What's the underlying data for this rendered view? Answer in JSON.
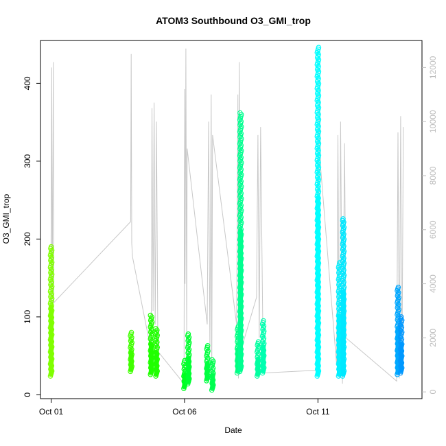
{
  "chart_data": {
    "type": "scatter",
    "title": "ATOM3 Southbound O3_GMI_trop",
    "xlabel": "Date",
    "ylabel": "O3_GMI_trop",
    "x_ticks": [
      "Oct 01",
      "Oct 06",
      "Oct 11"
    ],
    "x_tick_days": [
      1,
      6,
      11
    ],
    "xlim": [
      0.6,
      14.9
    ],
    "ylim": [
      -5,
      455
    ],
    "y_ticks": [
      0,
      100,
      200,
      300,
      400
    ],
    "y2_ticks": [
      0,
      2000,
      4000,
      6000,
      8000,
      10000,
      12000
    ],
    "y2lim": [
      -250,
      13000
    ],
    "y2_color": "#bdbdbd",
    "series": [
      {
        "day": 1.0,
        "min": 24,
        "max": 190,
        "color": "#80ff00"
      },
      {
        "day": 4.0,
        "min": 30,
        "max": 80,
        "color": "#40ff00"
      },
      {
        "day": 4.75,
        "min": 26,
        "max": 102,
        "color": "#20ff00"
      },
      {
        "day": 4.95,
        "min": 24,
        "max": 85,
        "color": "#20ff00"
      },
      {
        "day": 6.0,
        "min": 8,
        "max": 44,
        "color": "#00ff20"
      },
      {
        "day": 6.15,
        "min": 14,
        "max": 78,
        "color": "#00ff30"
      },
      {
        "day": 6.85,
        "min": 18,
        "max": 63,
        "color": "#00ff40"
      },
      {
        "day": 7.05,
        "min": 6,
        "max": 45,
        "color": "#00ff50"
      },
      {
        "day": 8.0,
        "min": 28,
        "max": 88,
        "color": "#00ff80"
      },
      {
        "day": 8.1,
        "min": 30,
        "max": 362,
        "color": "#00ff90"
      },
      {
        "day": 8.75,
        "min": 24,
        "max": 68,
        "color": "#00ffa0"
      },
      {
        "day": 8.95,
        "min": 28,
        "max": 95,
        "color": "#00ffb0"
      },
      {
        "day": 11.0,
        "min": 24,
        "max": 446,
        "color": "#00ffff"
      },
      {
        "day": 11.8,
        "min": 24,
        "max": 170,
        "color": "#00f0ff"
      },
      {
        "day": 11.95,
        "min": 24,
        "max": 226,
        "color": "#00e8ff"
      },
      {
        "day": 14.0,
        "min": 26,
        "max": 138,
        "color": "#00a8ff"
      },
      {
        "day": 14.12,
        "min": 28,
        "max": 100,
        "color": "#0098ff"
      }
    ],
    "altitude_track": [
      [
        0.98,
        1000
      ],
      [
        1.02,
        12000
      ],
      [
        1.04,
        3200
      ],
      [
        1.08,
        12200
      ],
      [
        1.1,
        3300
      ],
      [
        3.98,
        6300
      ],
      [
        4.0,
        12500
      ],
      [
        4.02,
        5500
      ],
      [
        4.05,
        5000
      ],
      [
        4.75,
        1500
      ],
      [
        4.78,
        10500
      ],
      [
        4.82,
        3000
      ],
      [
        4.86,
        10700
      ],
      [
        4.9,
        2500
      ],
      [
        4.95,
        10000
      ],
      [
        5.0,
        1500
      ],
      [
        5.98,
        300
      ],
      [
        6.0,
        11200
      ],
      [
        6.02,
        4000
      ],
      [
        6.05,
        12700
      ],
      [
        6.08,
        2000
      ],
      [
        6.1,
        9000
      ],
      [
        6.85,
        2500
      ],
      [
        6.9,
        10000
      ],
      [
        6.95,
        1500
      ],
      [
        7.0,
        11000
      ],
      [
        7.02,
        500
      ],
      [
        7.05,
        9500
      ],
      [
        7.95,
        2500
      ],
      [
        8.0,
        11000
      ],
      [
        8.02,
        500
      ],
      [
        8.05,
        12200
      ],
      [
        8.1,
        1500
      ],
      [
        8.7,
        3500
      ],
      [
        8.75,
        9500
      ],
      [
        8.8,
        2000
      ],
      [
        8.85,
        9800
      ],
      [
        8.95,
        700
      ],
      [
        10.95,
        800
      ],
      [
        11.0,
        10000
      ],
      [
        11.03,
        500
      ],
      [
        11.05,
        11500
      ],
      [
        11.1,
        8300
      ],
      [
        11.7,
        1000
      ],
      [
        11.75,
        9500
      ],
      [
        11.8,
        500
      ],
      [
        11.85,
        10000
      ],
      [
        11.92,
        300
      ],
      [
        12.0,
        9200
      ],
      [
        12.05,
        2000
      ],
      [
        13.95,
        400
      ],
      [
        14.0,
        9600
      ],
      [
        14.05,
        500
      ],
      [
        14.1,
        10200
      ],
      [
        14.15,
        600
      ],
      [
        14.2,
        9800
      ]
    ]
  }
}
